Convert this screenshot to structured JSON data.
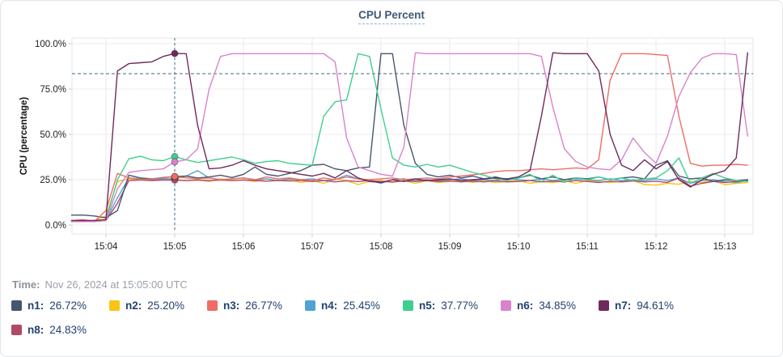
{
  "time_row": {
    "label": "Time:",
    "value": "Nov 26, 2024 at 15:05:00 UTC"
  },
  "chart_data": {
    "type": "line",
    "title": "CPU Percent",
    "ylabel": "CPU (percentage)",
    "ylim": [
      0,
      100
    ],
    "grid": true,
    "legend_position": "bottom",
    "x_axis": {
      "start_time": "15:03:30",
      "step_seconds": 10,
      "tick_labels": [
        "15:04",
        "15:05",
        "15:06",
        "15:07",
        "15:08",
        "15:09",
        "15:10",
        "15:11",
        "15:12",
        "15:13"
      ]
    },
    "y_axis": {
      "tick_values": [
        0,
        25,
        50,
        75,
        100
      ],
      "tick_labels": [
        "0.0%",
        "25.0%",
        "50.0%",
        "75.0%",
        "100.0%"
      ]
    },
    "threshold": {
      "value": 83.5,
      "style": "dashed",
      "color": "#3d6b80"
    },
    "cursor": {
      "index": 9,
      "time_label": "15:05:00"
    },
    "series": [
      {
        "name": "n1",
        "legend_label": "n1:",
        "cursor_label": "26.72%",
        "color": "#46566c",
        "values": [
          5.5,
          5.5,
          5.0,
          4.0,
          8.0,
          27.5,
          26.0,
          25.5,
          26.2,
          26.72,
          27.0,
          26.0,
          26.5,
          27.5,
          26.2,
          28.0,
          32.0,
          28.0,
          27.0,
          28.5,
          30.0,
          33.0,
          33.5,
          31.0,
          30.0,
          31.5,
          32.0,
          94.5,
          94.5,
          55.0,
          34.0,
          28.0,
          26.5,
          27.5,
          26.0,
          27.0,
          25.5,
          26.5,
          25.0,
          26.0,
          27.5,
          25.5,
          26.5,
          25.0,
          26.0,
          25.5,
          26.5,
          25.0,
          26.0,
          26.5,
          25.5,
          33.0,
          35.5,
          27.0,
          25.5,
          26.0,
          24.0,
          25.0,
          24.5,
          25.0
        ]
      },
      {
        "name": "n2",
        "legend_label": "n2:",
        "cursor_label": "25.20%",
        "color": "#f9c513",
        "values": [
          2.0,
          2.0,
          2.5,
          5.0,
          24.0,
          25.5,
          25.0,
          24.5,
          25.0,
          25.2,
          24.5,
          25.0,
          24.0,
          25.5,
          24.5,
          25.0,
          24.0,
          25.5,
          24.5,
          25.0,
          23.5,
          24.5,
          23.0,
          25.4,
          24.5,
          22.3,
          24.0,
          24.5,
          23.5,
          24.5,
          23.0,
          24.5,
          23.5,
          24.0,
          24.5,
          23.5,
          24.5,
          23.5,
          24.0,
          24.5,
          23.0,
          24.0,
          23.5,
          24.5,
          23.0,
          24.6,
          24.0,
          23.5,
          24.0,
          24.5,
          22.3,
          22.0,
          23.0,
          22.5,
          24.0,
          23.5,
          24.5,
          22.3,
          23.0,
          23.5
        ]
      },
      {
        "name": "n3",
        "legend_label": "n3:",
        "cursor_label": "26.77%",
        "color": "#ee6d66",
        "values": [
          2.5,
          3.0,
          2.0,
          8.0,
          28.5,
          26.0,
          25.0,
          25.5,
          26.0,
          26.77,
          26.0,
          25.5,
          26.0,
          25.0,
          25.5,
          26.0,
          25.0,
          26.5,
          25.5,
          26.0,
          25.0,
          24.6,
          26.0,
          25.0,
          26.5,
          25.5,
          25.0,
          25.5,
          26.0,
          25.0,
          25.5,
          26.0,
          25.5,
          26.5,
          27.0,
          27.7,
          28.5,
          29.5,
          30.0,
          30.0,
          30.5,
          31.0,
          30.5,
          31.0,
          31.5,
          31.0,
          36.0,
          80.0,
          94.5,
          94.5,
          94.5,
          94.0,
          93.5,
          60.0,
          34.0,
          32.5,
          33.0,
          33.0,
          33.5,
          33.0
        ]
      },
      {
        "name": "n4",
        "legend_label": "n4:",
        "cursor_label": "25.45%",
        "color": "#51a2d7",
        "values": [
          2.0,
          2.5,
          2.0,
          3.0,
          15.0,
          26.0,
          25.5,
          25.0,
          25.5,
          25.45,
          27.0,
          30.0,
          26.0,
          25.0,
          25.5,
          26.0,
          25.0,
          25.5,
          24.5,
          25.5,
          25.0,
          25.5,
          24.5,
          25.0,
          27.5,
          25.5,
          24.5,
          23.0,
          25.0,
          25.5,
          24.5,
          25.0,
          24.5,
          25.0,
          25.5,
          24.5,
          25.0,
          24.5,
          25.5,
          25.0,
          24.5,
          25.5,
          24.5,
          25.0,
          25.5,
          25.0,
          24.5,
          25.5,
          24.5,
          25.0,
          24.5,
          25.5,
          24.5,
          26.0,
          23.0,
          24.5,
          25.0,
          24.0,
          23.5,
          24.5
        ]
      },
      {
        "name": "n5",
        "legend_label": "n5:",
        "cursor_label": "37.77%",
        "color": "#40ce8e",
        "values": [
          2.0,
          2.5,
          2.5,
          3.0,
          25.0,
          36.5,
          38.0,
          36.0,
          35.5,
          37.77,
          36.0,
          34.5,
          35.5,
          36.5,
          37.5,
          36.0,
          34.0,
          35.0,
          35.5,
          34.0,
          33.5,
          33.0,
          60.0,
          68.0,
          69.0,
          94.5,
          93.0,
          64.0,
          37.0,
          33.0,
          32.0,
          33.5,
          32.0,
          33.0,
          31.0,
          29.0,
          27.5,
          25.5,
          24.5,
          26.0,
          28.0,
          24.0,
          27.5,
          23.5,
          26.0,
          25.0,
          26.5,
          25.0,
          26.0,
          24.5,
          25.5,
          26.0,
          30.0,
          37.0,
          23.0,
          26.0,
          28.5,
          26.0,
          24.5,
          24.0
        ]
      },
      {
        "name": "n6",
        "legend_label": "n6:",
        "cursor_label": "34.85%",
        "color": "#d883cc",
        "values": [
          2.0,
          2.0,
          2.0,
          2.5,
          20.0,
          29.0,
          30.0,
          30.5,
          31.0,
          34.85,
          36.0,
          42.0,
          75.0,
          93.0,
          94.5,
          94.5,
          94.5,
          94.5,
          94.5,
          94.5,
          94.5,
          94.5,
          94.5,
          90.0,
          48.0,
          32.0,
          30.0,
          28.0,
          27.0,
          43.0,
          95.0,
          94.5,
          94.5,
          94.5,
          94.5,
          94.5,
          94.5,
          94.5,
          94.5,
          94.5,
          94.5,
          93.0,
          65.0,
          42.0,
          35.0,
          32.0,
          31.0,
          30.5,
          36.0,
          48.0,
          40.0,
          34.0,
          49.0,
          71.0,
          84.0,
          92.0,
          94.5,
          94.5,
          94.0,
          49.0
        ]
      },
      {
        "name": "n7",
        "legend_label": "n7:",
        "cursor_label": "94.61%",
        "color": "#6f2a5d",
        "values": [
          2.5,
          2.5,
          2.5,
          3.0,
          85.0,
          89.0,
          89.5,
          90.0,
          93.0,
          94.61,
          94.5,
          55.0,
          31.0,
          31.5,
          33.0,
          35.5,
          33.0,
          31.0,
          30.0,
          29.0,
          28.0,
          27.0,
          28.5,
          26.0,
          30.0,
          26.0,
          24.0,
          23.5,
          25.0,
          24.0,
          25.5,
          24.5,
          25.0,
          25.5,
          24.5,
          25.0,
          25.5,
          26.0,
          25.5,
          26.5,
          30.0,
          60.0,
          95.0,
          94.5,
          94.5,
          94.5,
          85.0,
          50.0,
          33.0,
          30.0,
          36.0,
          31.0,
          35.0,
          25.0,
          21.0,
          25.0,
          28.0,
          30.0,
          37.0,
          95.0
        ]
      },
      {
        "name": "n8",
        "legend_label": "n8:",
        "cursor_label": "24.83%",
        "color": "#af4a67",
        "values": [
          2.0,
          2.0,
          2.0,
          2.5,
          12.0,
          24.5,
          24.8,
          24.5,
          24.8,
          24.83,
          24.5,
          24.8,
          24.5,
          24.8,
          24.5,
          24.8,
          24.5,
          24.2,
          24.6,
          24.3,
          24.6,
          24.0,
          24.5,
          23.8,
          24.4,
          24.0,
          24.5,
          24.0,
          23.8,
          24.3,
          24.0,
          24.5,
          24.0,
          24.3,
          23.8,
          24.2,
          23.8,
          24.3,
          23.8,
          24.0,
          24.5,
          23.8,
          24.2,
          23.8,
          24.5,
          24.0,
          23.5,
          24.2,
          23.8,
          24.3,
          23.8,
          24.2,
          23.5,
          26.0,
          21.5,
          23.0,
          24.0,
          23.5,
          24.0,
          24.2
        ]
      }
    ]
  }
}
